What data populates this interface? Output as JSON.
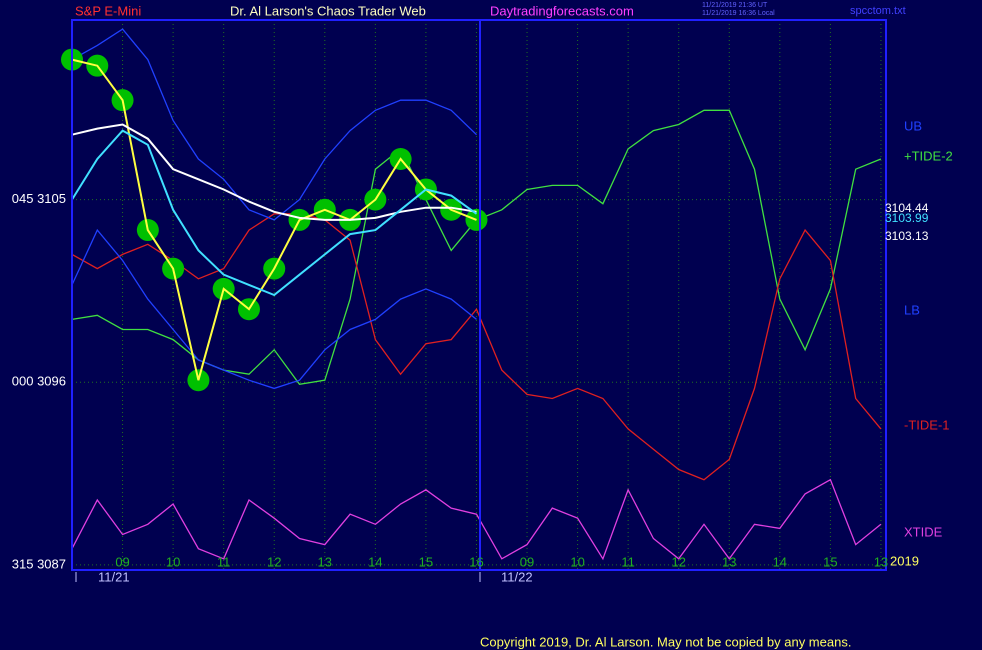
{
  "chart_data": {
    "type": "line",
    "source": "S&P E-Mini",
    "title": "Dr. Al Larson's Chaos Trader Web",
    "website": "Daytradingforecasts.com",
    "timestamps": [
      "11/21/2019 21:36 UT",
      "11/21/2019 16:36 Local"
    ],
    "file": "spcctom.txt",
    "copyright": "Copyright 2019, Dr. Al Larson. May not be copied by any means.",
    "year_label": "2019",
    "date_labels": [
      "11/21",
      "11/22"
    ],
    "last_values": [
      3104.44,
      3103.99,
      3103.13
    ],
    "x": [
      -1,
      -0.5,
      0,
      0.5,
      1,
      1.5,
      2,
      2.5,
      3,
      3.5,
      4,
      4.5,
      5,
      5.5,
      6,
      6.5,
      7,
      7.5,
      8,
      8.5,
      9,
      9.5,
      10,
      10.5,
      11,
      11.5,
      12,
      12.5,
      13,
      13.5,
      14,
      14.5,
      15
    ],
    "xlim": [
      -1,
      15.1
    ],
    "xticks": [
      {
        "value": 0,
        "label": "09"
      },
      {
        "value": 1,
        "label": "10"
      },
      {
        "value": 2,
        "label": "11"
      },
      {
        "value": 3,
        "label": "12"
      },
      {
        "value": 4,
        "label": "13"
      },
      {
        "value": 5,
        "label": "14"
      },
      {
        "value": 6,
        "label": "15"
      },
      {
        "value": 7,
        "label": "16"
      },
      {
        "value": 8,
        "label": "09"
      },
      {
        "value": 9,
        "label": "10"
      },
      {
        "value": 10,
        "label": "11"
      },
      {
        "value": 11,
        "label": "12"
      },
      {
        "value": 12,
        "label": "13"
      },
      {
        "value": 13,
        "label": "14"
      },
      {
        "value": 14,
        "label": "15"
      },
      {
        "value": 15,
        "label": "13"
      }
    ],
    "ylim": [
      3086.75,
      3113.85
    ],
    "yticks": [
      {
        "value": 3105,
        "label": "045 3105"
      },
      {
        "value": 3096,
        "label": "000 3096"
      },
      {
        "value": 3087,
        "label": "315 3087"
      }
    ],
    "grid": true,
    "series": [
      {
        "color": "#ffff40",
        "marker_color": "#00c000",
        "values": [
          3111.9,
          3111.6,
          3109.9,
          3103.5,
          3101.6,
          3096.1,
          3100.6,
          3099.6,
          3101.6,
          3104.0,
          3104.5,
          3104.0,
          3105.0,
          3107.0,
          3105.5,
          3104.5,
          3104.0,
          null,
          null,
          null,
          null,
          null,
          null,
          null,
          null,
          null,
          null,
          null,
          null,
          null,
          null,
          null,
          null
        ]
      },
      {
        "color": "#ffffff",
        "values": [
          3108.2,
          3108.5,
          3108.7,
          3108.0,
          3106.5,
          3106.0,
          3105.5,
          3104.9,
          3104.4,
          3104.1,
          3104.0,
          3104.0,
          3104.1,
          3104.4,
          3104.6,
          3104.6,
          3104.4,
          null,
          null,
          null,
          null,
          null,
          null,
          null,
          null,
          null,
          null,
          null,
          null,
          null,
          null,
          null,
          null
        ]
      },
      {
        "color": "#40e0ff",
        "values": [
          3105.0,
          3107.0,
          3108.4,
          3107.7,
          3104.5,
          3102.5,
          3101.3,
          3100.8,
          3100.3,
          3101.3,
          3102.3,
          3103.3,
          3103.5,
          3104.5,
          3105.5,
          3105.2,
          3104.3,
          null,
          null,
          null,
          null,
          null,
          null,
          null,
          null,
          null,
          null,
          null,
          null,
          null,
          null,
          null,
          null
        ]
      },
      {
        "name": "UB",
        "color": "#2040ff",
        "values": [
          3111.9,
          3112.6,
          3113.4,
          3111.9,
          3108.9,
          3107.0,
          3106.0,
          3104.5,
          3104.0,
          3105.0,
          3107.0,
          3108.4,
          3109.4,
          3109.9,
          3109.9,
          3109.4,
          3108.2,
          null,
          null,
          null,
          null,
          null,
          null,
          null,
          null,
          null,
          null,
          null,
          null,
          null,
          null,
          null,
          null
        ]
      },
      {
        "name": "LB",
        "color": "#2040ff",
        "values": [
          3100.8,
          3103.5,
          3102.0,
          3100.1,
          3098.6,
          3097.1,
          3096.6,
          3096.1,
          3095.7,
          3096.1,
          3097.6,
          3098.6,
          3099.1,
          3100.1,
          3100.6,
          3100.1,
          3099.1,
          null,
          null,
          null,
          null,
          null,
          null,
          null,
          null,
          null,
          null,
          null,
          null,
          null,
          null,
          null,
          null
        ]
      },
      {
        "name": "+TIDE-2",
        "color": "#40e040",
        "values": [
          3099.1,
          3099.3,
          3098.6,
          3098.6,
          3098.1,
          3097.1,
          3096.6,
          3096.4,
          3097.6,
          3095.9,
          3096.1,
          3100.1,
          3106.5,
          3107.5,
          3105.0,
          3102.5,
          3104.0,
          3104.5,
          3105.5,
          3105.7,
          3105.7,
          3104.8,
          3107.5,
          3108.4,
          3108.7,
          3109.4,
          3109.4,
          3106.5,
          3100.1,
          3097.6,
          3100.6,
          3106.5,
          3107.0
        ]
      },
      {
        "name": "-TIDE-1",
        "color": "#e02020",
        "values": [
          3102.3,
          3101.6,
          3102.3,
          3102.8,
          3102.0,
          3101.1,
          3101.6,
          3103.5,
          3104.3,
          3104.3,
          3104.0,
          3103.0,
          3098.1,
          3096.4,
          3097.9,
          3098.1,
          3099.6,
          3096.6,
          3095.4,
          3095.2,
          3095.7,
          3095.2,
          3093.7,
          3092.7,
          3091.7,
          3091.2,
          3092.2,
          3095.7,
          3101.1,
          3103.5,
          3102.0,
          3095.2,
          3093.7
        ]
      },
      {
        "name": "XTIDE",
        "color": "#e040e0",
        "values": [
          3087.8,
          3090.2,
          3088.5,
          3089.0,
          3090.0,
          3087.8,
          3087.3,
          3090.2,
          3089.3,
          3088.3,
          3088.0,
          3089.5,
          3089.0,
          3090.0,
          3090.7,
          3089.8,
          3089.5,
          3087.3,
          3088.0,
          3089.8,
          3089.3,
          3087.3,
          3090.7,
          3088.3,
          3087.3,
          3089.0,
          3087.3,
          3089.0,
          3088.8,
          3090.5,
          3091.2,
          3088.0,
          3089.0
        ]
      }
    ]
  }
}
